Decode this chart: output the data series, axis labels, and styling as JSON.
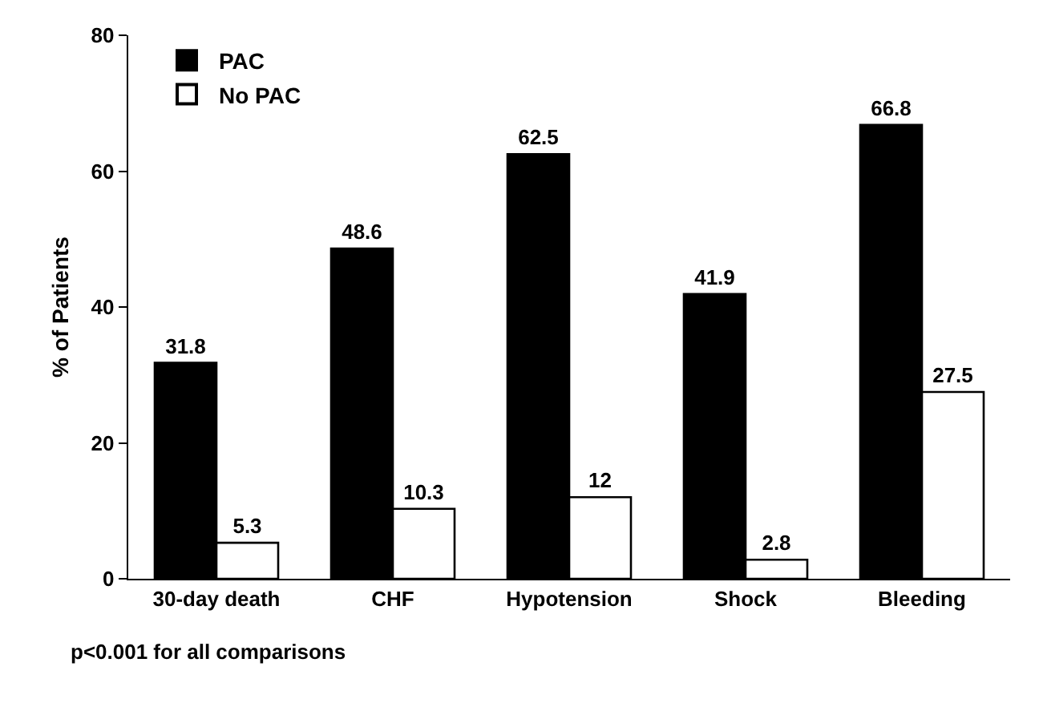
{
  "chart_data": {
    "type": "bar",
    "ylabel": "% of Patients",
    "categories": [
      "30-day death",
      "CHF",
      "Hypotension",
      "Shock",
      "Bleeding"
    ],
    "series": [
      {
        "name": "PAC",
        "color": "#000000",
        "values": [
          31.8,
          48.6,
          62.5,
          41.9,
          66.8
        ]
      },
      {
        "name": "No PAC",
        "color": "#ffffff",
        "values": [
          5.3,
          10.3,
          12,
          2.8,
          27.5
        ]
      }
    ],
    "ylim": [
      0,
      80
    ],
    "yticks": [
      0,
      20,
      40,
      60,
      80
    ],
    "grid": false,
    "legend": "top left",
    "data_labels": true,
    "annotations": [
      "p<0.001 for all comparisons"
    ]
  }
}
